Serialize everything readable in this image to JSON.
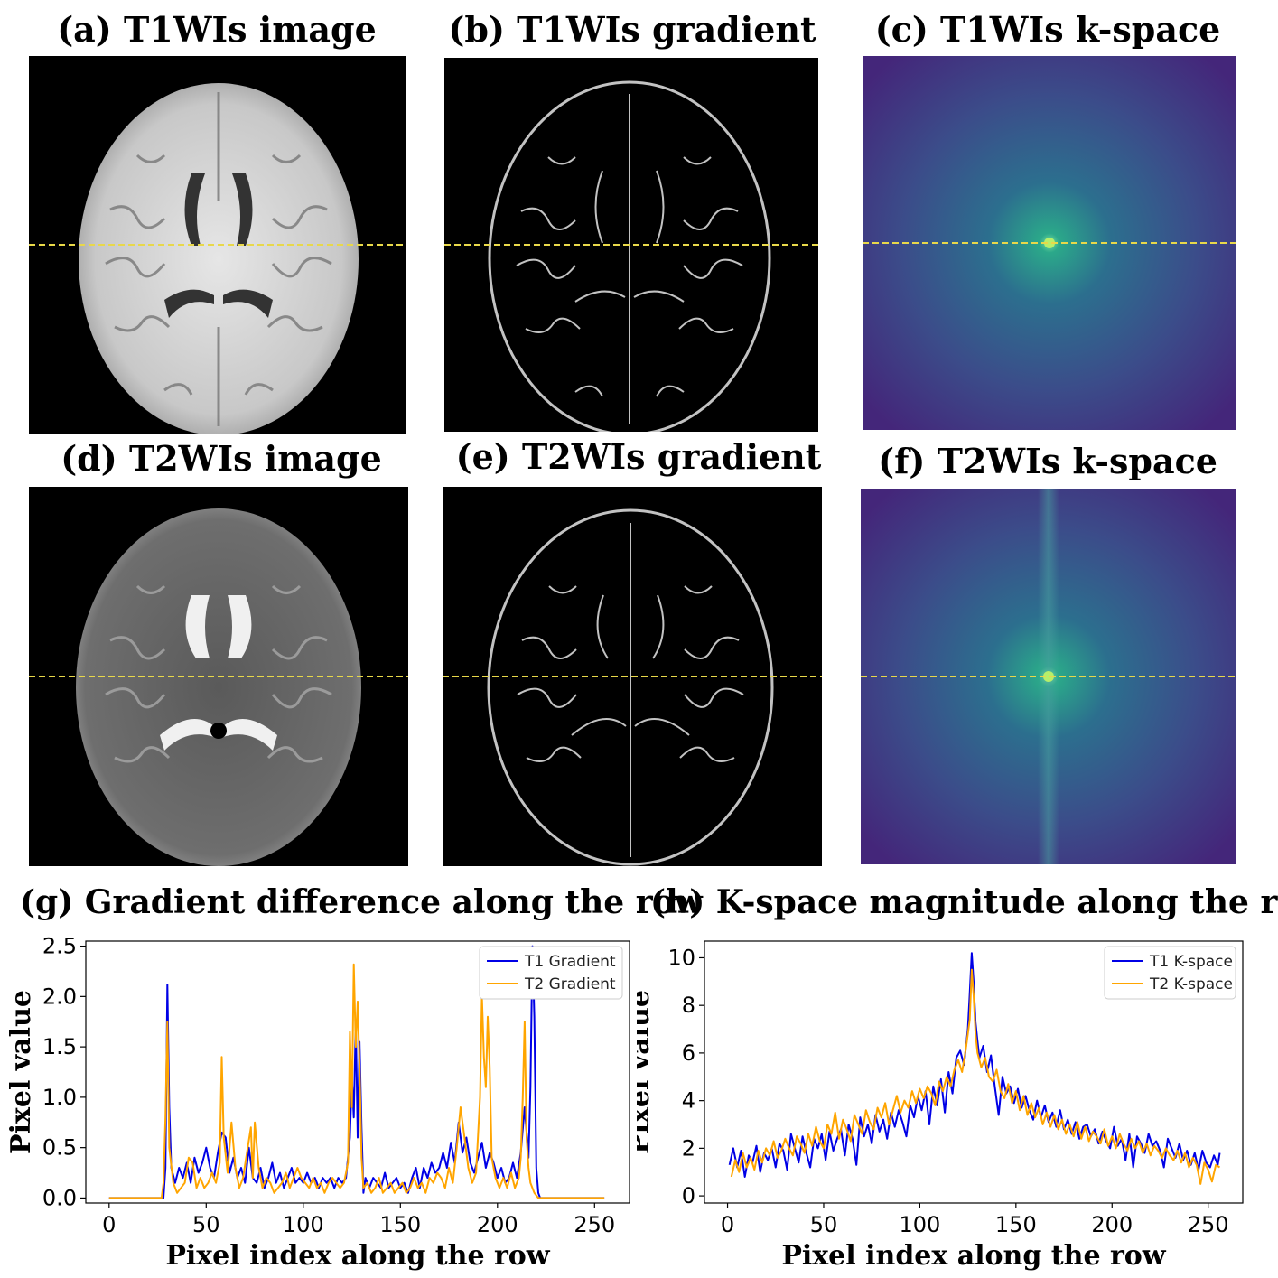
{
  "panels": {
    "a": {
      "title": "(a) T1WIs image"
    },
    "b": {
      "title": "(b) T1WIs gradient"
    },
    "c": {
      "title": "(c) T1WIs k-space"
    },
    "d": {
      "title": "(d) T2WIs image"
    },
    "e": {
      "title": "(e) T2WIs gradient"
    },
    "f": {
      "title": "(f) T2WIs k-space"
    }
  },
  "colors": {
    "t1": "#0000e6",
    "t2": "#ffa500",
    "row_line": "#e8d84a",
    "kspace_bg": "#3b0f70",
    "kspace_center": "#5bd98a"
  },
  "chart_data": [
    {
      "type": "line",
      "title": "(g) Gradient difference along the row",
      "xlabel": "Pixel index along the row",
      "ylabel": "Pixel value",
      "xlim": [
        -12,
        268
      ],
      "ylim": [
        -0.05,
        2.55
      ],
      "xticks": [
        0,
        50,
        100,
        150,
        200,
        250
      ],
      "xtick_labels": [
        "0",
        "50",
        "100",
        "150",
        "200",
        "250"
      ],
      "yticks": [
        0.0,
        0.5,
        1.0,
        1.5,
        2.0,
        2.5
      ],
      "ytick_labels": [
        "0.0",
        "0.5",
        "1.0",
        "1.5",
        "2.0",
        "2.5"
      ],
      "legend": "top-right",
      "grid": false,
      "series": [
        {
          "name": "T1 Gradient",
          "color": "#0000e6",
          "x": [
            0,
            28,
            29,
            30,
            31,
            32,
            34,
            36,
            38,
            40,
            42,
            44,
            46,
            48,
            50,
            52,
            54,
            56,
            58,
            60,
            62,
            64,
            66,
            68,
            70,
            72,
            74,
            76,
            78,
            80,
            82,
            84,
            86,
            88,
            90,
            92,
            94,
            96,
            98,
            100,
            102,
            104,
            106,
            108,
            110,
            112,
            114,
            116,
            118,
            120,
            122,
            124,
            125,
            126,
            127,
            128,
            129,
            130,
            131,
            132,
            134,
            136,
            138,
            140,
            142,
            144,
            146,
            148,
            150,
            152,
            154,
            156,
            158,
            160,
            162,
            164,
            166,
            168,
            170,
            172,
            174,
            176,
            178,
            180,
            182,
            184,
            186,
            188,
            190,
            192,
            194,
            196,
            198,
            200,
            202,
            204,
            206,
            208,
            210,
            212,
            214,
            216,
            217,
            218,
            219,
            220,
            221,
            222,
            224,
            255
          ],
          "y": [
            0.0,
            0.0,
            0.3,
            2.12,
            0.9,
            0.3,
            0.15,
            0.3,
            0.2,
            0.35,
            0.15,
            0.4,
            0.25,
            0.35,
            0.5,
            0.3,
            0.2,
            0.45,
            0.65,
            0.6,
            0.25,
            0.4,
            0.2,
            0.3,
            0.15,
            0.5,
            0.2,
            0.15,
            0.3,
            0.1,
            0.2,
            0.35,
            0.15,
            0.25,
            0.1,
            0.2,
            0.3,
            0.15,
            0.2,
            0.15,
            0.25,
            0.15,
            0.2,
            0.1,
            0.2,
            0.15,
            0.2,
            0.1,
            0.2,
            0.15,
            0.2,
            0.6,
            1.2,
            0.8,
            1.75,
            0.6,
            1.55,
            0.7,
            0.05,
            0.2,
            0.1,
            0.2,
            0.15,
            0.1,
            0.25,
            0.1,
            0.15,
            0.2,
            0.1,
            0.15,
            0.05,
            0.2,
            0.3,
            0.1,
            0.3,
            0.2,
            0.35,
            0.25,
            0.3,
            0.45,
            0.3,
            0.55,
            0.35,
            0.75,
            0.45,
            0.6,
            0.35,
            0.25,
            0.4,
            0.55,
            0.3,
            0.45,
            0.35,
            0.2,
            0.3,
            0.15,
            0.2,
            0.35,
            0.2,
            0.45,
            0.9,
            0.4,
            1.1,
            2.5,
            1.8,
            0.3,
            0.05,
            0.0,
            0.0,
            0.0
          ]
        },
        {
          "name": "T2 Gradient",
          "color": "#ffa500",
          "x": [
            0,
            27,
            28,
            29,
            30,
            31,
            33,
            35,
            37,
            39,
            41,
            43,
            45,
            47,
            49,
            51,
            53,
            55,
            57,
            58,
            59,
            61,
            63,
            65,
            67,
            69,
            71,
            73,
            74,
            75,
            77,
            79,
            81,
            83,
            85,
            87,
            89,
            91,
            93,
            95,
            97,
            99,
            101,
            103,
            105,
            107,
            109,
            111,
            113,
            115,
            117,
            119,
            121,
            122,
            123,
            124,
            125,
            126,
            127,
            128,
            129,
            130,
            131,
            133,
            135,
            137,
            139,
            141,
            143,
            145,
            147,
            149,
            151,
            153,
            155,
            157,
            159,
            161,
            163,
            165,
            167,
            169,
            171,
            173,
            175,
            177,
            179,
            181,
            183,
            185,
            187,
            189,
            191,
            192,
            193,
            194,
            195,
            196,
            197,
            199,
            201,
            203,
            205,
            207,
            209,
            211,
            212,
            213,
            214,
            215,
            216,
            217,
            219,
            221,
            255
          ],
          "y": [
            0.0,
            0.0,
            0.15,
            0.8,
            1.75,
            0.5,
            0.15,
            0.05,
            0.1,
            0.15,
            0.4,
            0.35,
            0.1,
            0.2,
            0.1,
            0.15,
            0.25,
            0.15,
            0.35,
            1.4,
            0.6,
            0.25,
            0.75,
            0.3,
            0.1,
            0.2,
            0.45,
            0.7,
            0.2,
            0.75,
            0.3,
            0.1,
            0.2,
            0.15,
            0.05,
            0.1,
            0.15,
            0.25,
            0.1,
            0.2,
            0.3,
            0.2,
            0.15,
            0.1,
            0.2,
            0.1,
            0.15,
            0.05,
            0.15,
            0.2,
            0.15,
            0.1,
            0.15,
            0.25,
            0.35,
            1.65,
            0.9,
            2.32,
            1.5,
            1.95,
            1.3,
            0.4,
            0.1,
            0.15,
            0.05,
            0.1,
            0.2,
            0.05,
            0.1,
            0.15,
            0.05,
            0.1,
            0.15,
            0.05,
            0.1,
            0.2,
            0.1,
            0.15,
            0.05,
            0.2,
            0.15,
            0.25,
            0.2,
            0.1,
            0.3,
            0.15,
            0.5,
            0.9,
            0.6,
            0.3,
            0.15,
            0.25,
            1.0,
            2.0,
            1.4,
            1.1,
            1.8,
            1.3,
            0.4,
            0.2,
            0.1,
            0.2,
            0.1,
            0.25,
            0.1,
            0.2,
            0.4,
            1.0,
            1.75,
            0.6,
            0.3,
            0.15,
            0.05,
            0.0,
            0.0
          ]
        }
      ]
    },
    {
      "type": "line",
      "title": "(h) K-space magnitude along the row",
      "xlabel": "Pixel index along the row",
      "ylabel": "Pixel value",
      "xlim": [
        -12,
        268
      ],
      "ylim": [
        -0.3,
        10.7
      ],
      "xticks": [
        0,
        50,
        100,
        150,
        200,
        250
      ],
      "xtick_labels": [
        "0",
        "50",
        "100",
        "150",
        "200",
        "250"
      ],
      "yticks": [
        0,
        2,
        4,
        6,
        8,
        10
      ],
      "ytick_labels": [
        "0",
        "2",
        "4",
        "6",
        "8",
        "10"
      ],
      "legend": "top-right",
      "grid": false,
      "series": [
        {
          "name": "T1 K-space",
          "color": "#0000e6",
          "x": [
            1,
            3,
            5,
            7,
            9,
            11,
            13,
            15,
            17,
            19,
            21,
            23,
            25,
            27,
            29,
            31,
            33,
            35,
            37,
            39,
            41,
            43,
            45,
            47,
            49,
            51,
            53,
            55,
            57,
            59,
            61,
            63,
            65,
            67,
            69,
            71,
            73,
            75,
            77,
            79,
            81,
            83,
            85,
            87,
            89,
            91,
            93,
            95,
            97,
            99,
            101,
            103,
            105,
            107,
            109,
            111,
            113,
            115,
            117,
            119,
            121,
            123,
            125,
            126,
            127,
            128,
            129,
            130,
            131,
            133,
            135,
            137,
            139,
            141,
            143,
            145,
            147,
            149,
            151,
            153,
            155,
            157,
            159,
            161,
            163,
            165,
            167,
            169,
            171,
            173,
            175,
            177,
            179,
            181,
            183,
            185,
            187,
            189,
            191,
            193,
            195,
            197,
            199,
            201,
            203,
            205,
            207,
            209,
            211,
            213,
            215,
            217,
            219,
            221,
            223,
            225,
            227,
            229,
            231,
            233,
            235,
            237,
            239,
            241,
            243,
            245,
            247,
            249,
            251,
            253,
            255,
            256
          ],
          "y": [
            1.3,
            2.0,
            1.2,
            1.9,
            0.8,
            1.7,
            1.4,
            2.1,
            1.0,
            1.8,
            1.5,
            2.0,
            1.2,
            2.2,
            1.9,
            1.1,
            2.6,
            2.0,
            1.4,
            2.5,
            1.8,
            1.2,
            2.4,
            2.0,
            2.6,
            1.5,
            2.7,
            1.9,
            2.4,
            2.8,
            1.7,
            3.0,
            2.4,
            1.3,
            3.3,
            2.5,
            3.0,
            2.2,
            3.4,
            2.7,
            3.2,
            2.4,
            3.5,
            2.9,
            3.6,
            3.1,
            2.5,
            3.8,
            3.3,
            4.2,
            3.6,
            4.4,
            3.0,
            4.6,
            3.8,
            4.9,
            3.5,
            5.2,
            4.3,
            5.8,
            6.1,
            5.5,
            7.0,
            8.5,
            10.2,
            9.0,
            7.3,
            6.5,
            5.8,
            6.3,
            5.2,
            5.9,
            4.6,
            3.4,
            5.0,
            4.3,
            4.6,
            3.9,
            4.5,
            3.7,
            4.2,
            3.6,
            3.2,
            4.0,
            3.3,
            3.8,
            3.1,
            3.5,
            2.9,
            3.6,
            2.8,
            3.2,
            2.6,
            3.1,
            2.4,
            2.9,
            3.0,
            2.5,
            2.8,
            2.2,
            2.7,
            2.3,
            2.0,
            2.9,
            2.1,
            2.4,
            1.5,
            2.6,
            1.2,
            2.5,
            2.2,
            1.8,
            2.6,
            2.1,
            2.3,
            1.9,
            1.2,
            2.4,
            2.0,
            1.6,
            2.2,
            1.5,
            1.9,
            1.3,
            1.8,
            1.1,
            1.9,
            1.4,
            1.2,
            1.7,
            1.3,
            1.8
          ]
        },
        {
          "name": "T2 K-space",
          "color": "#ffa500",
          "x": [
            2,
            4,
            6,
            8,
            10,
            12,
            14,
            16,
            18,
            20,
            22,
            24,
            26,
            28,
            30,
            32,
            34,
            36,
            38,
            40,
            42,
            44,
            46,
            48,
            50,
            52,
            54,
            56,
            58,
            60,
            62,
            64,
            66,
            68,
            70,
            72,
            74,
            76,
            78,
            80,
            82,
            84,
            86,
            88,
            90,
            92,
            94,
            96,
            98,
            100,
            102,
            104,
            106,
            108,
            110,
            112,
            114,
            116,
            118,
            120,
            122,
            124,
            126,
            127,
            128,
            129,
            130,
            132,
            134,
            136,
            138,
            140,
            142,
            144,
            146,
            148,
            150,
            152,
            154,
            156,
            158,
            160,
            162,
            164,
            166,
            168,
            170,
            172,
            174,
            176,
            178,
            180,
            182,
            184,
            186,
            188,
            190,
            192,
            194,
            196,
            198,
            200,
            202,
            204,
            206,
            208,
            210,
            212,
            214,
            216,
            218,
            220,
            222,
            224,
            226,
            228,
            230,
            232,
            234,
            236,
            238,
            240,
            242,
            244,
            246,
            248,
            250,
            252,
            254,
            256
          ],
          "y": [
            0.8,
            1.5,
            1.0,
            1.8,
            1.2,
            1.6,
            1.1,
            1.9,
            1.4,
            2.0,
            1.7,
            2.3,
            1.6,
            1.9,
            2.4,
            2.0,
            1.7,
            2.5,
            2.2,
            1.8,
            2.6,
            2.1,
            2.9,
            2.3,
            2.0,
            3.0,
            2.6,
            3.5,
            2.4,
            3.2,
            2.8,
            2.3,
            3.4,
            3.0,
            2.6,
            3.6,
            3.1,
            2.8,
            3.7,
            3.3,
            3.9,
            3.0,
            3.6,
            4.2,
            3.5,
            4.0,
            3.7,
            4.4,
            3.9,
            4.5,
            4.1,
            4.6,
            4.3,
            3.8,
            4.8,
            4.4,
            5.0,
            4.6,
            5.3,
            5.7,
            5.2,
            6.2,
            7.4,
            9.5,
            8.4,
            6.8,
            6.0,
            5.4,
            5.8,
            5.0,
            4.8,
            5.3,
            4.4,
            4.1,
            4.7,
            3.9,
            4.4,
            3.6,
            4.2,
            3.4,
            3.9,
            3.3,
            3.7,
            3.0,
            3.5,
            2.9,
            3.4,
            2.8,
            3.2,
            2.6,
            3.0,
            2.5,
            3.1,
            2.4,
            2.9,
            2.3,
            2.7,
            2.5,
            2.2,
            2.8,
            2.1,
            2.5,
            2.0,
            2.6,
            2.2,
            1.9,
            2.4,
            2.0,
            2.3,
            1.8,
            2.2,
            1.7,
            2.1,
            1.9,
            1.6,
            2.0,
            1.7,
            1.5,
            1.9,
            1.4,
            1.8,
            1.2,
            1.6,
            1.3,
            0.5,
            1.4,
            1.1,
            0.6,
            1.3,
            1.2
          ]
        }
      ]
    }
  ]
}
